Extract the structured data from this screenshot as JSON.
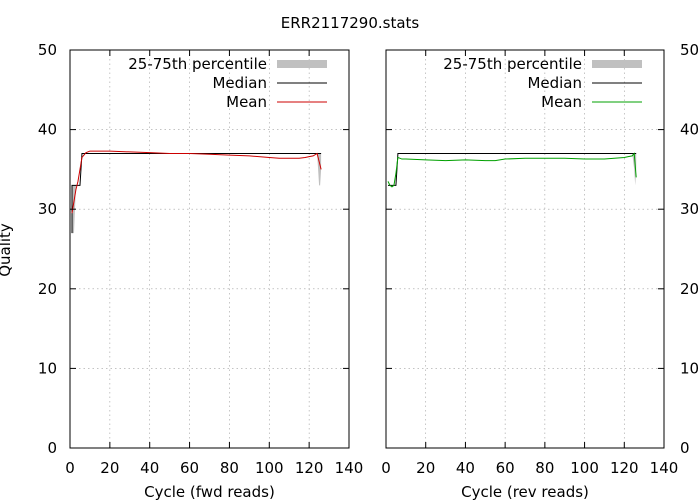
{
  "colors": {
    "band": "#c0c0c0",
    "median": "#000000",
    "mean_fwd": "#cc0000",
    "mean_rev": "#00a000",
    "grid": "#a0a0a0"
  },
  "chart_data": {
    "type": "line",
    "title": "ERR2117290.stats",
    "ylabel": "Quality",
    "ylim": [
      0,
      50
    ],
    "yticks": [
      0,
      10,
      20,
      30,
      40,
      50
    ],
    "xlim": [
      0,
      140
    ],
    "xticks": [
      0,
      20,
      40,
      60,
      80,
      100,
      120,
      140
    ],
    "legend": {
      "band": "25-75th percentile",
      "median": "Median",
      "mean": "Mean"
    },
    "panels": [
      {
        "id": "fwd",
        "xlabel": "Cycle (fwd reads)",
        "band": {
          "x": [
            1,
            2,
            3,
            4,
            5,
            6,
            10,
            60,
            120,
            124,
            125,
            125.5,
            126
          ],
          "lo": [
            27,
            27,
            33,
            33,
            33,
            37,
            37,
            37,
            37,
            37,
            33,
            33,
            35
          ],
          "hi": [
            33,
            33,
            33,
            33,
            33,
            37,
            37,
            37,
            37,
            37,
            37,
            37,
            37
          ]
        },
        "median": {
          "x": [
            1,
            1,
            2,
            2,
            5,
            6,
            122,
            125,
            126
          ],
          "y": [
            27,
            33,
            33,
            33,
            33,
            37,
            37,
            37,
            37
          ]
        },
        "mean": {
          "x": [
            1,
            2,
            3,
            4,
            5,
            6,
            8,
            10,
            20,
            30,
            40,
            50,
            60,
            70,
            80,
            90,
            100,
            105,
            110,
            115,
            118,
            120,
            122,
            124,
            125,
            126
          ],
          "y": [
            29.5,
            31.0,
            32.5,
            33.5,
            35.0,
            36.5,
            37.1,
            37.3,
            37.3,
            37.2,
            37.1,
            37.0,
            37.0,
            36.9,
            36.8,
            36.7,
            36.5,
            36.4,
            36.4,
            36.4,
            36.5,
            36.6,
            36.7,
            37.0,
            36.0,
            35.0
          ]
        }
      },
      {
        "id": "rev",
        "xlabel": "Cycle (rev reads)",
        "band": {
          "x": [
            1,
            5,
            6,
            122,
            124,
            125,
            125.5,
            126
          ],
          "lo": [
            33,
            33,
            37,
            37,
            37,
            35,
            33,
            35
          ],
          "hi": [
            33,
            33,
            37,
            37,
            37,
            37,
            37,
            37
          ]
        },
        "median": {
          "x": [
            1,
            5,
            6,
            124,
            126
          ],
          "y": [
            33,
            33,
            37,
            37,
            37
          ]
        },
        "mean": {
          "x": [
            1,
            2,
            3,
            4,
            5,
            6,
            8,
            10,
            20,
            30,
            40,
            50,
            55,
            60,
            70,
            80,
            90,
            100,
            110,
            115,
            120,
            122,
            124,
            125,
            126
          ],
          "y": [
            33.5,
            33.0,
            32.8,
            33.0,
            34.5,
            36.5,
            36.3,
            36.3,
            36.2,
            36.1,
            36.2,
            36.1,
            36.1,
            36.3,
            36.4,
            36.4,
            36.4,
            36.3,
            36.3,
            36.4,
            36.5,
            36.6,
            36.7,
            37.0,
            34.0
          ]
        }
      }
    ]
  }
}
